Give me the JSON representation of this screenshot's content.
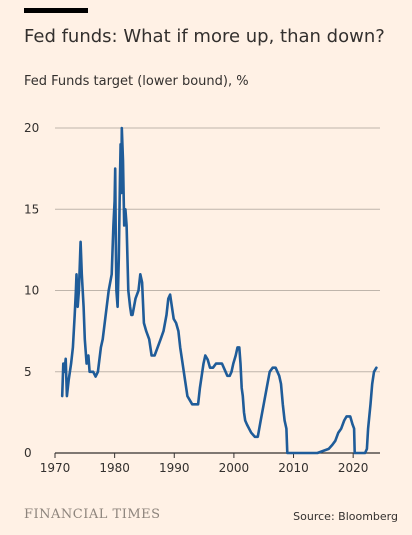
{
  "header": {
    "title": "Fed funds: What if more up, than down?",
    "subtitle": "Fed Funds target (lower bound), %"
  },
  "footer": {
    "brand": "FINANCIAL TIMES",
    "source": "Source: Bloomberg"
  },
  "colors": {
    "background": "#fff1e5",
    "line": "#1f5c99",
    "grid": "#bfb5ab",
    "text": "#33302e"
  },
  "chart_data": {
    "type": "line",
    "title": "Fed funds: What if more up, than down?",
    "ylabel": "Fed Funds target (lower bound), %",
    "xlabel": "",
    "xlim": [
      1970,
      2024.5
    ],
    "ylim": [
      0,
      20
    ],
    "xticks": [
      1970,
      1980,
      1990,
      2000,
      2010,
      2020
    ],
    "yticks": [
      0,
      5,
      10,
      15,
      20
    ],
    "grid": true,
    "legend": "none",
    "series": [
      {
        "x": [
          1971.2,
          1971.4,
          1971.6,
          1971.8,
          1972.0,
          1972.3,
          1972.7,
          1973.0,
          1973.3,
          1973.5,
          1973.6,
          1973.8,
          1974.0,
          1974.3,
          1974.5,
          1974.8,
          1975.0,
          1975.3,
          1975.6,
          1975.8,
          1976.0,
          1976.4,
          1976.8,
          1977.2,
          1977.7,
          1978.0,
          1978.5,
          1979.0,
          1979.5,
          1979.8,
          1980.0,
          1980.1,
          1980.2,
          1980.3,
          1980.5,
          1980.7,
          1980.9,
          1981.0,
          1981.1,
          1981.2,
          1981.4,
          1981.5,
          1981.6,
          1981.8,
          1982.0,
          1982.3,
          1982.6,
          1982.8,
          1983.0,
          1983.5,
          1984.0,
          1984.3,
          1984.6,
          1984.9,
          1985.3,
          1985.8,
          1986.2,
          1986.7,
          1987.2,
          1987.7,
          1988.2,
          1988.7,
          1989.0,
          1989.3,
          1989.6,
          1989.9,
          1990.3,
          1990.7,
          1991.0,
          1991.4,
          1991.8,
          1992.2,
          1992.6,
          1993.0,
          1993.5,
          1994.0,
          1994.3,
          1994.6,
          1994.9,
          1995.2,
          1995.6,
          1996.0,
          1996.5,
          1997.0,
          1997.5,
          1998.0,
          1998.6,
          1998.9,
          1999.3,
          1999.6,
          1999.9,
          2000.3,
          2000.6,
          2000.9,
          2001.1,
          2001.3,
          2001.5,
          2001.7,
          2001.9,
          2002.2,
          2002.9,
          2003.5,
          2004.0,
          2004.5,
          2005.0,
          2005.5,
          2006.0,
          2006.5,
          2007.0,
          2007.6,
          2007.9,
          2008.2,
          2008.5,
          2008.8,
          2008.96,
          2010.0,
          2012.0,
          2014.0,
          2015.9,
          2016.5,
          2017.0,
          2017.5,
          2018.0,
          2018.5,
          2018.9,
          2019.5,
          2019.7,
          2019.9,
          2020.15,
          2020.25,
          2021.0,
          2022.0,
          2022.3,
          2022.5,
          2022.7,
          2022.9,
          2023.2,
          2023.5,
          2023.9
        ],
        "y": [
          3.5,
          5.5,
          5.0,
          5.8,
          3.5,
          4.5,
          5.5,
          6.5,
          8.5,
          10.0,
          11.0,
          9.0,
          10.0,
          13.0,
          11.0,
          9.0,
          7.0,
          5.5,
          6.0,
          5.0,
          5.0,
          5.0,
          4.7,
          5.0,
          6.5,
          7.0,
          8.5,
          10.0,
          11.0,
          14.0,
          15.5,
          17.5,
          13.0,
          10.0,
          9.0,
          12.0,
          17.0,
          19.0,
          16.0,
          20.0,
          18.0,
          16.0,
          14.0,
          15.0,
          14.0,
          10.0,
          9.0,
          8.5,
          8.5,
          9.5,
          10.0,
          11.0,
          10.5,
          8.0,
          7.5,
          7.0,
          6.0,
          6.0,
          6.5,
          7.0,
          7.5,
          8.5,
          9.5,
          9.75,
          9.0,
          8.25,
          8.0,
          7.5,
          6.5,
          5.5,
          4.5,
          3.5,
          3.25,
          3.0,
          3.0,
          3.0,
          4.0,
          4.75,
          5.5,
          6.0,
          5.75,
          5.25,
          5.25,
          5.5,
          5.5,
          5.5,
          5.0,
          4.75,
          4.75,
          5.0,
          5.5,
          6.0,
          6.5,
          6.5,
          5.5,
          4.0,
          3.5,
          2.5,
          2.0,
          1.75,
          1.25,
          1.0,
          1.0,
          2.0,
          3.0,
          4.0,
          5.0,
          5.25,
          5.25,
          4.75,
          4.25,
          3.0,
          2.0,
          1.5,
          0.0,
          0.0,
          0.0,
          0.0,
          0.25,
          0.5,
          0.75,
          1.25,
          1.5,
          2.0,
          2.25,
          2.25,
          2.0,
          1.75,
          1.5,
          0.0,
          0.0,
          0.0,
          0.25,
          1.5,
          2.25,
          3.0,
          4.25,
          5.0,
          5.25
        ]
      }
    ]
  }
}
